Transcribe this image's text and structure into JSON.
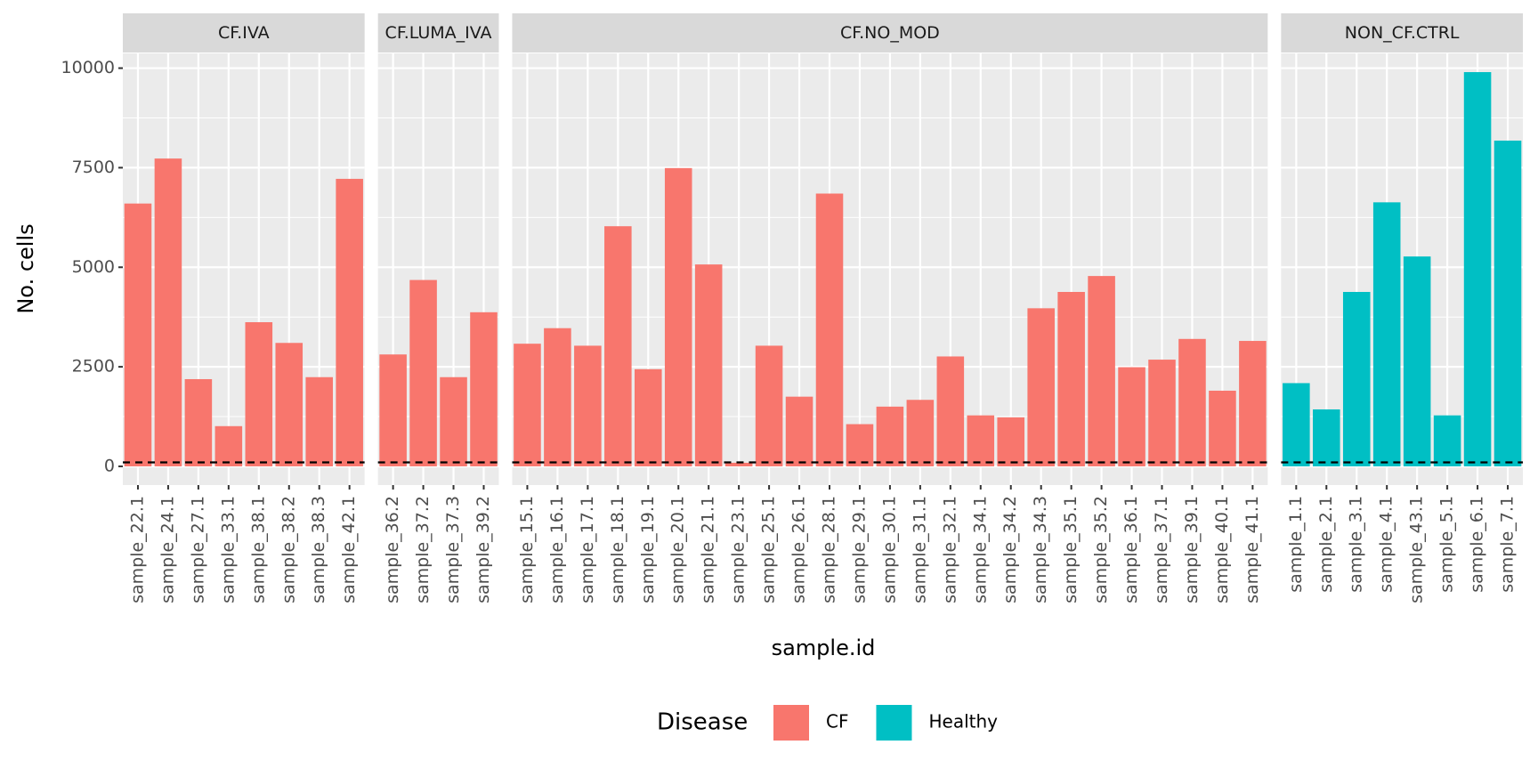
{
  "chart_data": {
    "type": "bar",
    "ylabel": "No. cells",
    "xlabel": "sample.id",
    "ylim": [
      -470,
      10370
    ],
    "yticks": [
      0,
      2500,
      5000,
      7500,
      10000
    ],
    "grid": true,
    "hline": 100,
    "legend": {
      "title": "Disease",
      "position": "bottom",
      "entries": [
        {
          "name": "CF",
          "color": "#f8766d"
        },
        {
          "name": "Healthy",
          "color": "#00bfc4"
        }
      ]
    },
    "facets": [
      {
        "title": "CF.IVA",
        "color": "#f8766d",
        "categories": [
          "sample_22.1",
          "sample_24.1",
          "sample_27.1",
          "sample_33.1",
          "sample_38.1",
          "sample_38.2",
          "sample_38.3",
          "sample_42.1"
        ],
        "values": [
          6600,
          7730,
          2190,
          1010,
          3620,
          3100,
          2240,
          7220
        ]
      },
      {
        "title": "CF.LUMA_IVA",
        "color": "#f8766d",
        "categories": [
          "sample_36.2",
          "sample_37.2",
          "sample_37.3",
          "sample_39.2"
        ],
        "values": [
          2810,
          4680,
          2240,
          3870
        ]
      },
      {
        "title": "CF.NO_MOD",
        "color": "#f8766d",
        "categories": [
          "sample_15.1",
          "sample_16.1",
          "sample_17.1",
          "sample_18.1",
          "sample_19.1",
          "sample_20.1",
          "sample_21.1",
          "sample_23.1",
          "sample_25.1",
          "sample_26.1",
          "sample_28.1",
          "sample_29.1",
          "sample_30.1",
          "sample_31.1",
          "sample_32.1",
          "sample_34.1",
          "sample_34.2",
          "sample_34.3",
          "sample_35.1",
          "sample_35.2",
          "sample_36.1",
          "sample_37.1",
          "sample_39.1",
          "sample_40.1",
          "sample_41.1"
        ],
        "values": [
          3080,
          3470,
          3030,
          6030,
          2440,
          7490,
          5070,
          90,
          3030,
          1750,
          6850,
          1060,
          1500,
          1670,
          2760,
          1280,
          1230,
          3970,
          4380,
          4780,
          2490,
          2680,
          3200,
          1900,
          3150
        ]
      },
      {
        "title": "NON_CF.CTRL",
        "color": "#00bfc4",
        "categories": [
          "sample_1.1",
          "sample_2.1",
          "sample_3.1",
          "sample_4.1",
          "sample_43.1",
          "sample_5.1",
          "sample_6.1",
          "sample_7.1"
        ],
        "values": [
          2090,
          1430,
          4380,
          6630,
          5270,
          1280,
          9900,
          8180
        ]
      }
    ]
  }
}
